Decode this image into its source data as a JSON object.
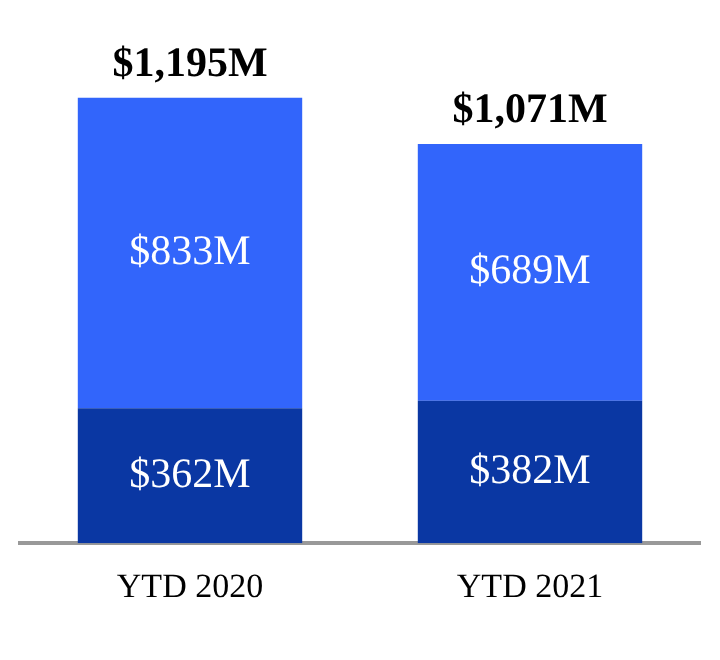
{
  "chart_data": {
    "type": "bar",
    "stacked": true,
    "categories": [
      "YTD 2020",
      "YTD 2021"
    ],
    "series": [
      {
        "color": "#0a37a3",
        "values": [
          362,
          382
        ],
        "value_labels": [
          "$362M",
          "$382M"
        ]
      },
      {
        "color": "#3265fb",
        "values": [
          833,
          689
        ],
        "value_labels": [
          "$833M",
          "$689M"
        ]
      }
    ],
    "totals": [
      "$1,195M",
      "$1,071M"
    ],
    "grid": false,
    "legend": false
  }
}
